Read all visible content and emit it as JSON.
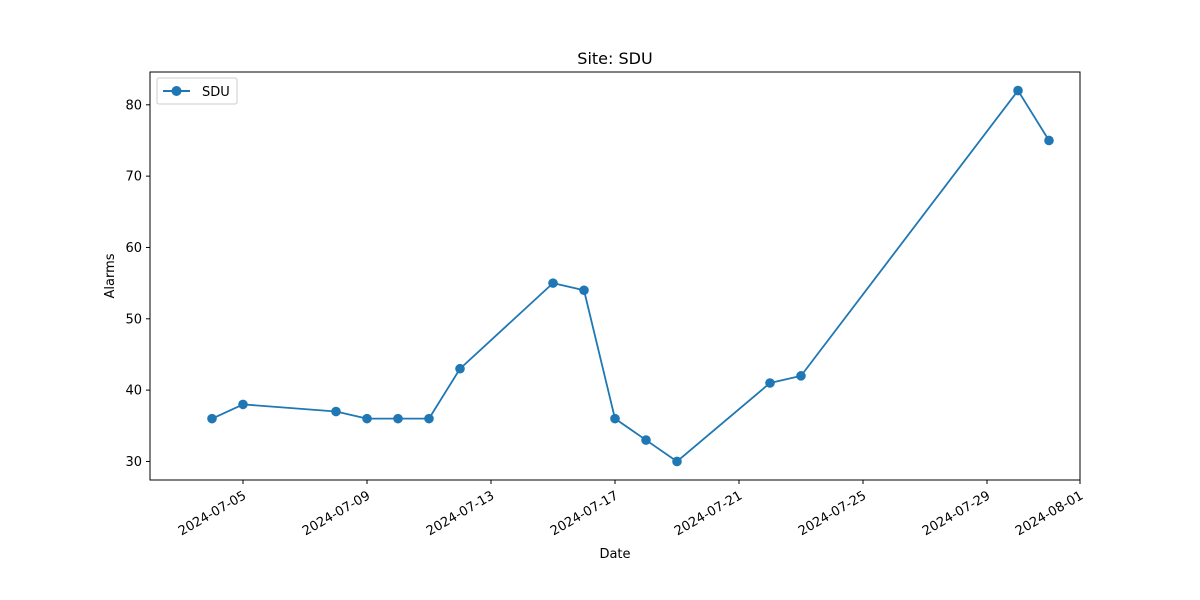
{
  "chart_data": {
    "type": "line",
    "title": "Site: SDU",
    "xlabel": "Date",
    "ylabel": "Alarms",
    "x_tick_labels": [
      "2024-07-05",
      "2024-07-09",
      "2024-07-13",
      "2024-07-17",
      "2024-07-21",
      "2024-07-25",
      "2024-07-29",
      "2024-08-01"
    ],
    "y_tick_labels": [
      "30",
      "40",
      "50",
      "60",
      "70",
      "80"
    ],
    "xlim": [
      "2024-07-02",
      "2024-08-01"
    ],
    "ylim": [
      27.4,
      84.6
    ],
    "grid": false,
    "legend": {
      "position": "top-left"
    },
    "series": [
      {
        "name": "SDU",
        "color": "#1f77b4",
        "marker": "circle",
        "points": [
          {
            "x": "2024-07-04",
            "y": 36
          },
          {
            "x": "2024-07-05",
            "y": 38
          },
          {
            "x": "2024-07-08",
            "y": 37
          },
          {
            "x": "2024-07-09",
            "y": 36
          },
          {
            "x": "2024-07-10",
            "y": 36
          },
          {
            "x": "2024-07-11",
            "y": 36
          },
          {
            "x": "2024-07-12",
            "y": 43
          },
          {
            "x": "2024-07-15",
            "y": 55
          },
          {
            "x": "2024-07-16",
            "y": 54
          },
          {
            "x": "2024-07-17",
            "y": 36
          },
          {
            "x": "2024-07-18",
            "y": 33
          },
          {
            "x": "2024-07-19",
            "y": 30
          },
          {
            "x": "2024-07-22",
            "y": 41
          },
          {
            "x": "2024-07-23",
            "y": 42
          },
          {
            "x": "2024-07-30",
            "y": 82
          },
          {
            "x": "2024-07-31",
            "y": 75
          }
        ]
      }
    ]
  }
}
